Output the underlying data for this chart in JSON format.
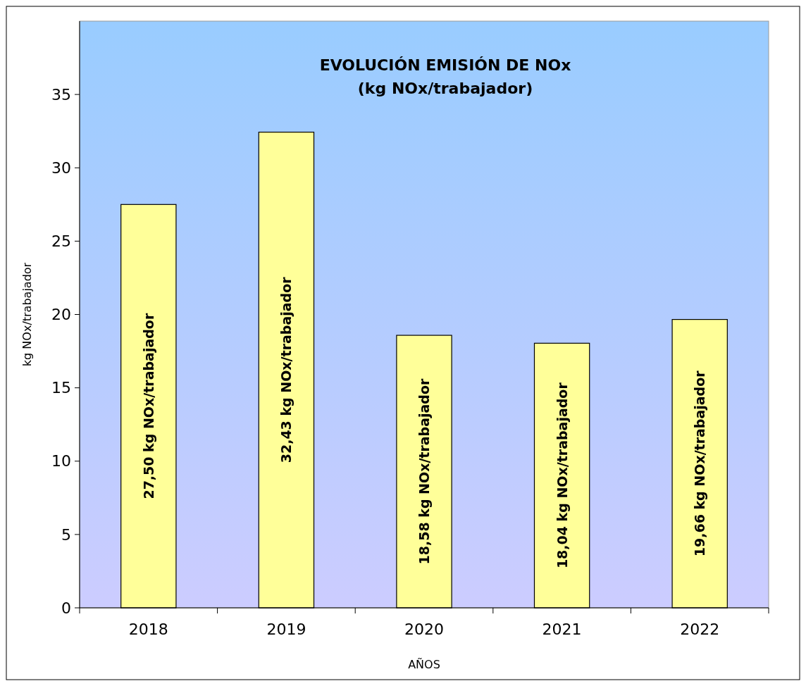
{
  "chart_data": {
    "type": "bar",
    "title": "EVOLUCIÓN  EMISIÓN DE NOx",
    "subtitle": "(kg NOx/trabajador)",
    "xlabel": "AÑOS",
    "ylabel": "kg NOx/trabajador",
    "categories": [
      "2018",
      "2019",
      "2020",
      "2021",
      "2022"
    ],
    "values": [
      27.5,
      32.43,
      18.58,
      18.04,
      19.66
    ],
    "value_labels": [
      "27,50 kg  NOx/trabajador",
      "32,43 kg  NOx/trabajador",
      "18,58 kg  NOx/trabajador",
      "18,04 kg  NOx/trabajador",
      "19,66 kg  NOx/trabajador"
    ],
    "color": "#ffff99",
    "ylim": [
      0,
      40
    ],
    "yticks": [
      0,
      5,
      10,
      15,
      20,
      25,
      30,
      35
    ],
    "grid": false
  }
}
